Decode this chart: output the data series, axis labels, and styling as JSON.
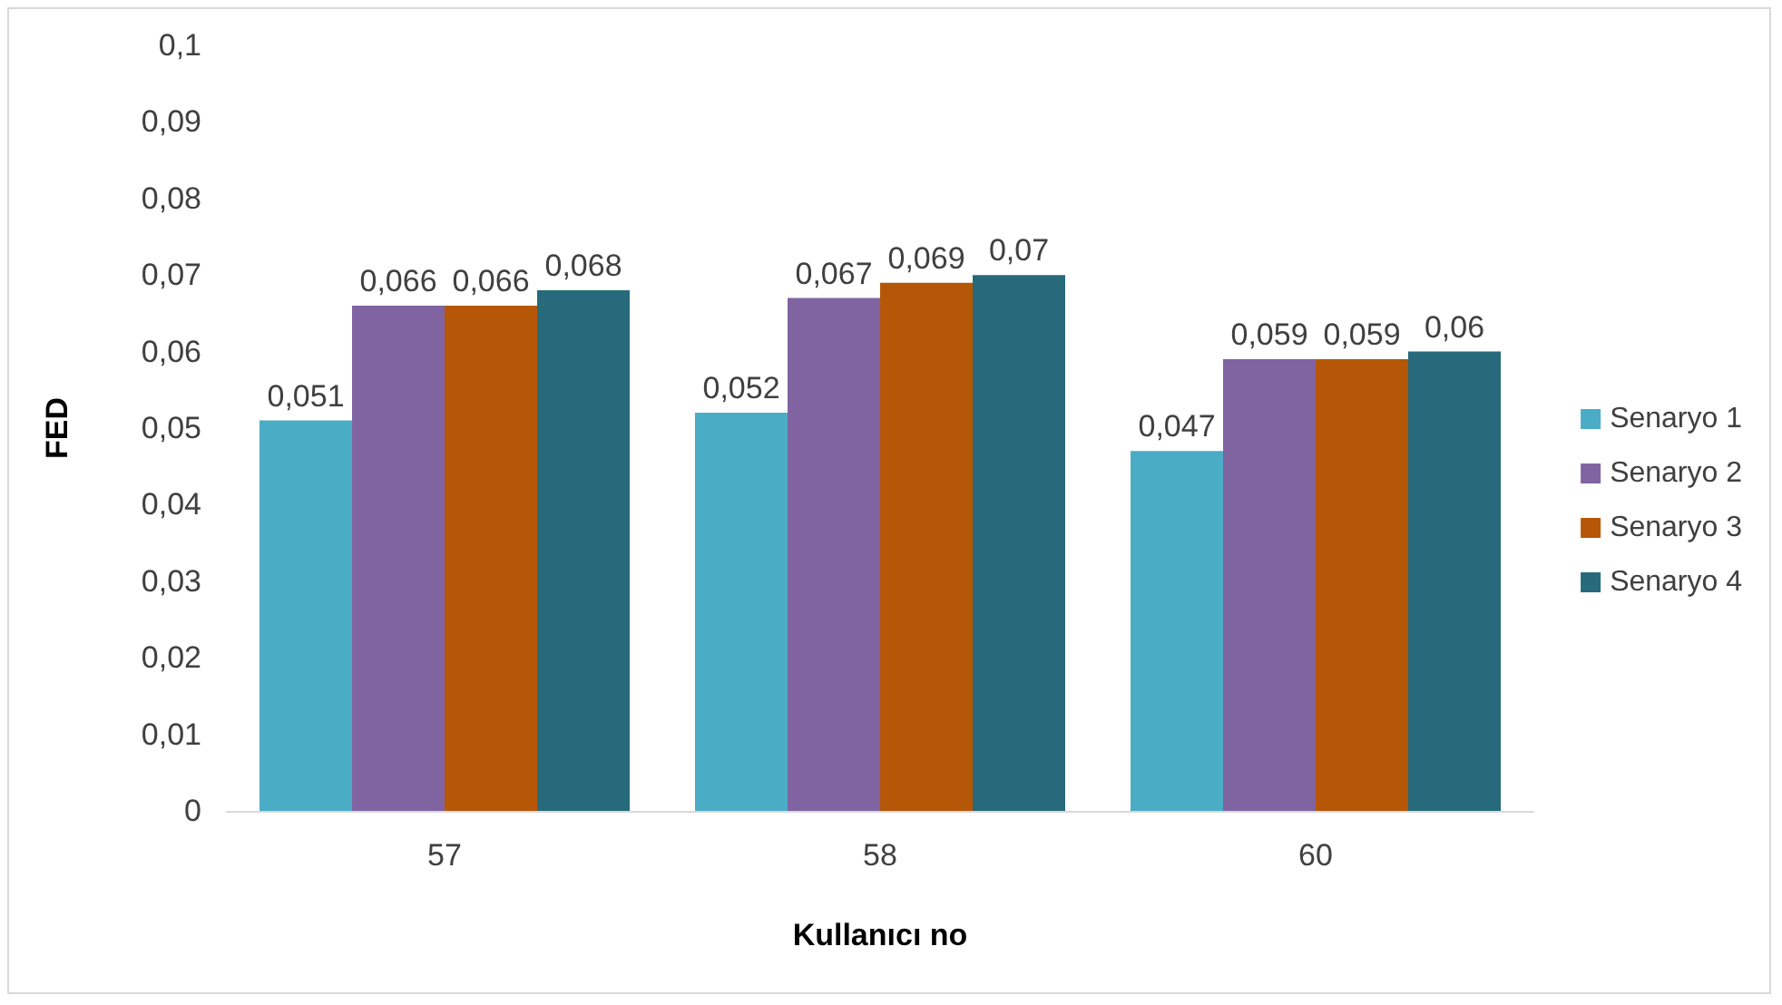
{
  "chart_data": {
    "type": "bar",
    "xlabel": "Kullanıcı no",
    "ylabel": "FED",
    "categories": [
      "57",
      "58",
      "60"
    ],
    "series": [
      {
        "name": "Senaryo 1",
        "color": "#4bacc6",
        "values": [
          0.051,
          0.052,
          0.047
        ],
        "value_labels": [
          "0,051",
          "0,052",
          "0,047"
        ]
      },
      {
        "name": "Senaryo 2",
        "color": "#8064a2",
        "values": [
          0.066,
          0.067,
          0.059
        ],
        "value_labels": [
          "0,066",
          "0,067",
          "0,059"
        ]
      },
      {
        "name": "Senaryo 3",
        "color": "#b65708",
        "values": [
          0.066,
          0.069,
          0.059
        ],
        "value_labels": [
          "0,066",
          "0,069",
          "0,059"
        ]
      },
      {
        "name": "Senaryo 4",
        "color": "#266a7b",
        "values": [
          0.068,
          0.07,
          0.06
        ],
        "value_labels": [
          "0,068",
          "0,07",
          "0,06"
        ]
      }
    ],
    "ylim": [
      0,
      0.1
    ],
    "yticks": [
      {
        "value": 0,
        "label": "0"
      },
      {
        "value": 0.01,
        "label": "0,01"
      },
      {
        "value": 0.02,
        "label": "0,02"
      },
      {
        "value": 0.03,
        "label": "0,03"
      },
      {
        "value": 0.04,
        "label": "0,04"
      },
      {
        "value": 0.05,
        "label": "0,05"
      },
      {
        "value": 0.06,
        "label": "0,06"
      },
      {
        "value": 0.07,
        "label": "0,07"
      },
      {
        "value": 0.08,
        "label": "0,08"
      },
      {
        "value": 0.09,
        "label": "0,09"
      },
      {
        "value": 0.1,
        "label": "0,1"
      }
    ],
    "grid": false,
    "legend": "right"
  }
}
